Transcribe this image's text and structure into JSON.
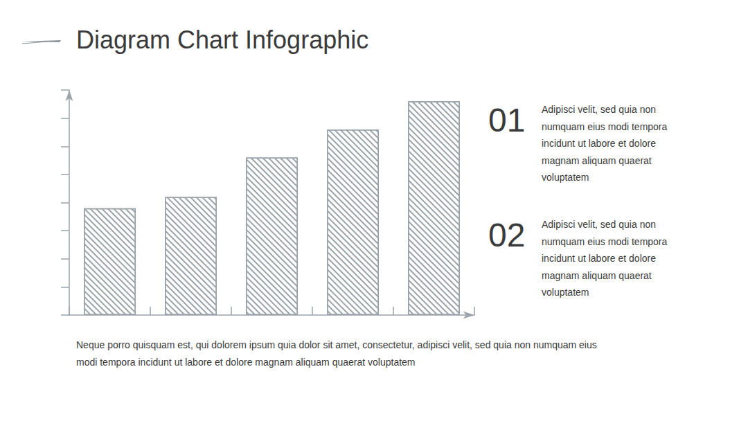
{
  "chart_data": {
    "type": "bar",
    "title": "Diagram Chart Infographic",
    "categories": [
      null,
      null,
      null,
      null,
      null
    ],
    "values": [
      3.8,
      4.2,
      5.6,
      6.6,
      7.6
    ],
    "color": "#9aa3aa",
    "ylim": [
      0,
      8
    ],
    "yticks": [
      0,
      1,
      2,
      3,
      4,
      5,
      6,
      7
    ],
    "grid": false,
    "tick_labels": false
  },
  "items": [
    {
      "number": "01",
      "text": "Adipisci velit, sed quia non numquam eius modi tempora incidunt ut labore et dolore magnam aliquam quaerat voluptatem"
    },
    {
      "number": "02",
      "text": "Adipisci velit, sed quia non numquam eius modi tempora incidunt ut labore et dolore magnam aliquam quaerat voluptatem"
    }
  ],
  "footer": "Neque porro quisquam est, qui dolorem ipsum quia dolor sit amet, consectetur, adipisci velit, sed quia non numquam eius modi tempora incidunt ut labore et dolore magnam aliquam quaerat voluptatem"
}
